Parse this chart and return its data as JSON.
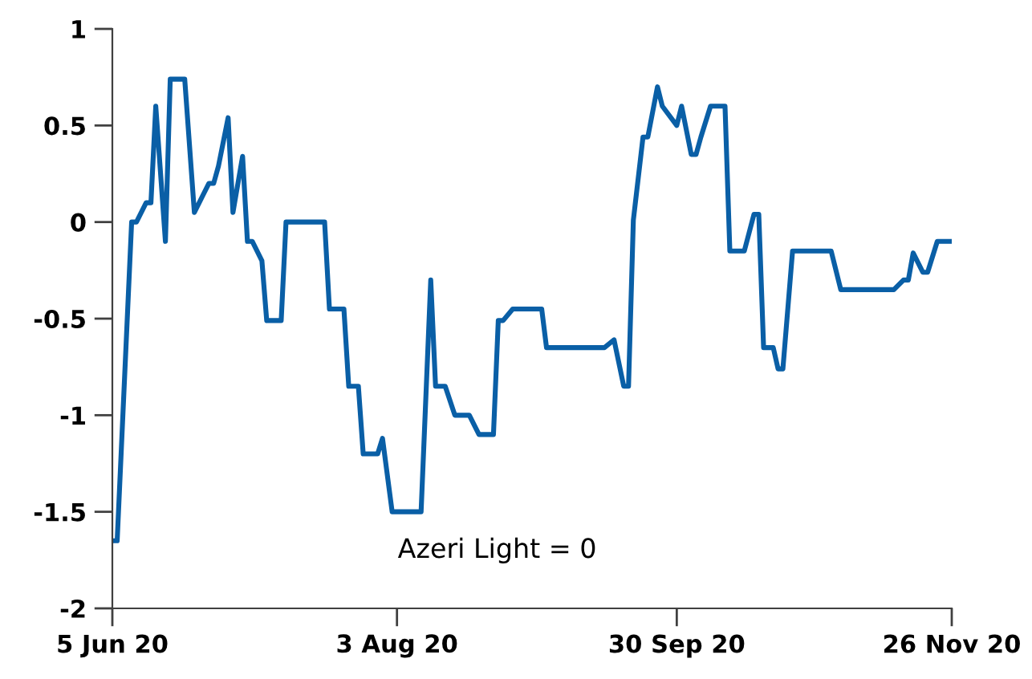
{
  "chart_data": {
    "type": "line",
    "x": [
      "2020-06-05",
      "2020-06-06",
      "2020-06-09",
      "2020-06-10",
      "2020-06-12",
      "2020-06-13",
      "2020-06-14",
      "2020-06-16",
      "2020-06-17",
      "2020-06-20",
      "2020-06-22",
      "2020-06-23",
      "2020-06-25",
      "2020-06-26",
      "2020-06-27",
      "2020-06-29",
      "2020-06-30",
      "2020-07-02",
      "2020-07-03",
      "2020-07-04",
      "2020-07-06",
      "2020-07-07",
      "2020-07-10",
      "2020-07-11",
      "2020-07-19",
      "2020-07-20",
      "2020-07-23",
      "2020-07-24",
      "2020-07-26",
      "2020-07-27",
      "2020-07-30",
      "2020-07-31",
      "2020-08-02",
      "2020-08-08",
      "2020-08-10",
      "2020-08-11",
      "2020-08-13",
      "2020-08-15",
      "2020-08-18",
      "2020-08-20",
      "2020-08-23",
      "2020-08-24",
      "2020-08-25",
      "2020-08-27",
      "2020-09-02",
      "2020-09-03",
      "2020-09-15",
      "2020-09-17",
      "2020-09-19",
      "2020-09-20",
      "2020-09-21",
      "2020-09-23",
      "2020-09-24",
      "2020-09-26",
      "2020-09-27",
      "2020-09-30",
      "2020-10-01",
      "2020-10-03",
      "2020-10-04",
      "2020-10-05",
      "2020-10-07",
      "2020-10-10",
      "2020-10-11",
      "2020-10-14",
      "2020-10-16",
      "2020-10-17",
      "2020-10-18",
      "2020-10-20",
      "2020-10-21",
      "2020-10-22",
      "2020-10-24",
      "2020-11-01",
      "2020-11-03",
      "2020-11-14",
      "2020-11-16",
      "2020-11-17",
      "2020-11-18",
      "2020-11-20",
      "2020-11-21",
      "2020-11-23",
      "2020-11-26"
    ],
    "series": [
      {
        "color": "#0a5fa6",
        "values": [
          -1.65,
          -1.65,
          0.0,
          0.0,
          0.1,
          0.1,
          0.6,
          -0.1,
          0.74,
          0.74,
          0.05,
          0.1,
          0.2,
          0.2,
          0.29,
          0.54,
          0.05,
          0.34,
          -0.1,
          -0.1,
          -0.2,
          -0.51,
          -0.51,
          0.0,
          0.0,
          -0.45,
          -0.45,
          -0.85,
          -0.85,
          -1.2,
          -1.2,
          -1.12,
          -1.5,
          -1.5,
          -0.3,
          -0.85,
          -0.85,
          -1.0,
          -1.0,
          -1.1,
          -1.1,
          -0.51,
          -0.51,
          -0.45,
          -0.45,
          -0.65,
          -0.65,
          -0.61,
          -0.85,
          -0.85,
          0.01,
          0.44,
          0.44,
          0.7,
          0.6,
          0.5,
          0.6,
          0.35,
          0.35,
          0.44,
          0.6,
          0.6,
          -0.15,
          -0.15,
          0.04,
          0.04,
          -0.65,
          -0.65,
          -0.76,
          -0.76,
          -0.15,
          -0.15,
          -0.35,
          -0.35,
          -0.3,
          -0.3,
          -0.16,
          -0.26,
          -0.26,
          -0.1,
          -0.1
        ]
      }
    ],
    "xlim": [
      "2020-06-05",
      "2020-11-26"
    ],
    "xticks": [
      {
        "value": "2020-06-05",
        "label": "5 Jun 20"
      },
      {
        "value": "2020-08-03",
        "label": "3 Aug 20"
      },
      {
        "value": "2020-09-30",
        "label": "30 Sep 20"
      },
      {
        "value": "2020-11-26",
        "label": "26 Nov 20"
      }
    ],
    "ylim": [
      -2,
      1
    ],
    "yticks": [
      -2,
      -1.5,
      -1,
      -0.5,
      0,
      0.5,
      1
    ],
    "annotations": [
      "Azeri Light = 0"
    ],
    "grid": false,
    "legend": false,
    "line_style": "solid"
  }
}
